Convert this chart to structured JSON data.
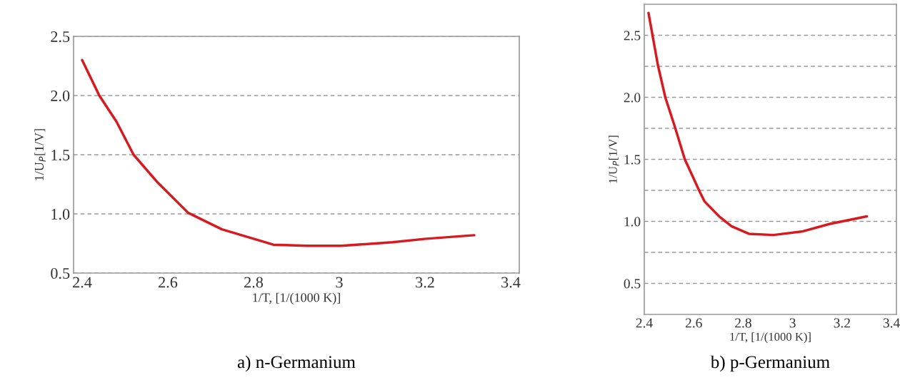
{
  "chart_data": [
    {
      "type": "line",
      "title": "a) n-Germanium",
      "xlabel": "1/T, [1/(1000 K)]",
      "ylabel": "1/U$_{P}$[1/V]",
      "xlim": [
        2.38,
        3.42
      ],
      "xticks": [
        2.4,
        2.6,
        2.8,
        3,
        3.2,
        3.4
      ],
      "ylim": [
        0.5,
        2.5
      ],
      "yticks": [
        {
          "value": 0.5,
          "label": "0.5"
        },
        {
          "value": 1.0,
          "label": "1.0"
        },
        {
          "value": 1.5,
          "label": "1.5"
        },
        {
          "value": 2.0,
          "label": "2.0"
        },
        {
          "value": 2.5,
          "label": "2.5"
        }
      ],
      "grid": "y",
      "line_style": "solid",
      "marker": "none",
      "series": [
        {
          "color": "#d71920",
          "x": [
            2.4,
            2.44,
            2.48,
            2.52,
            2.575,
            2.647,
            2.726,
            2.846,
            2.925,
            3.005,
            3.124,
            3.203,
            3.315
          ],
          "values": [
            2.3,
            2.0,
            1.78,
            1.5,
            1.27,
            1.01,
            0.87,
            0.74,
            0.73,
            0.73,
            0.76,
            0.79,
            0.82
          ]
        }
      ]
    },
    {
      "type": "line",
      "title": "b) p-Germanium",
      "xlabel": "1/T, [1/(1000 K)]",
      "ylabel": "1/U$_{P}$[1/V]",
      "xlim": [
        2.4,
        3.42
      ],
      "xticks": [
        2.4,
        2.6,
        2.8,
        3,
        3.2,
        3.4
      ],
      "ylim": [
        0.25,
        2.75
      ],
      "yticks": [
        {
          "value": 0.5,
          "label": "0.5"
        },
        {
          "value": 0.75,
          "label": null
        },
        {
          "value": 1.0,
          "label": "1.0"
        },
        {
          "value": 1.25,
          "label": null
        },
        {
          "value": 1.5,
          "label": "1.5"
        },
        {
          "value": 1.75,
          "label": null
        },
        {
          "value": 2.0,
          "label": "2.0"
        },
        {
          "value": 2.25,
          "label": null
        },
        {
          "value": 2.5,
          "label": "2.5"
        }
      ],
      "grid": "y",
      "line_style": "solid",
      "marker": "none",
      "series": [
        {
          "color": "#d71920",
          "x": [
            2.417,
            2.455,
            2.485,
            2.524,
            2.564,
            2.624,
            2.644,
            2.703,
            2.753,
            2.823,
            2.922,
            3.042,
            3.151,
            3.3
          ],
          "values": [
            2.68,
            2.26,
            2.0,
            1.76,
            1.5,
            1.24,
            1.16,
            1.04,
            0.96,
            0.9,
            0.89,
            0.92,
            0.98,
            1.04
          ]
        }
      ]
    }
  ]
}
